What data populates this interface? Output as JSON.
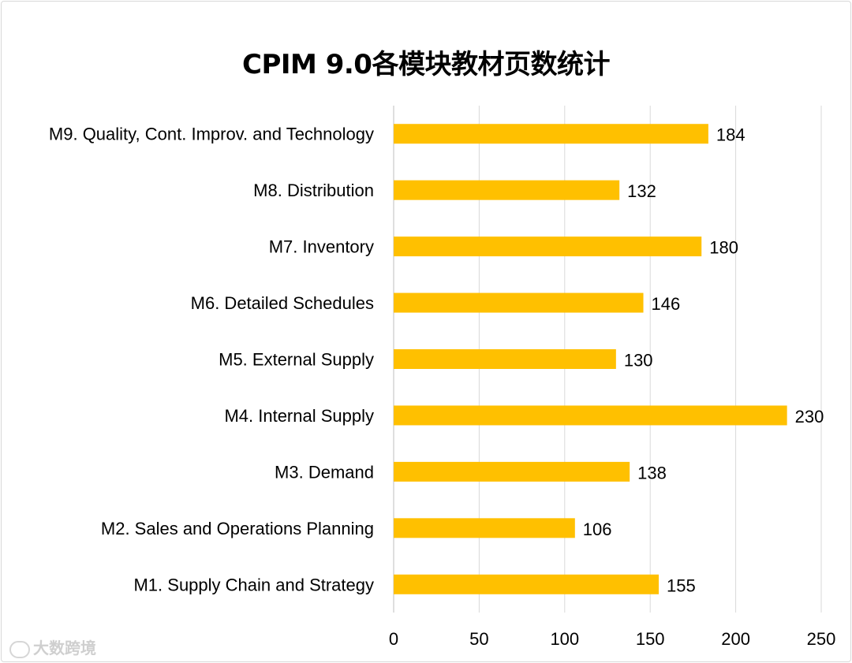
{
  "chart_data": {
    "type": "bar",
    "orientation": "horizontal",
    "title": "CPIM 9.0各模块教材页数统计",
    "categories": [
      "M1. Supply Chain and Strategy",
      "M2. Sales and Operations Planning",
      "M3. Demand",
      "M4. Internal Supply",
      "M5. External Supply",
      "M6. Detailed Schedules",
      "M7. Inventory",
      "M8. Distribution",
      "M9. Quality, Cont. Improv. and Technology"
    ],
    "values": [
      155,
      106,
      138,
      230,
      130,
      146,
      180,
      132,
      184
    ],
    "xlim": [
      0,
      250
    ],
    "xticks": [
      0,
      50,
      100,
      150,
      200,
      250
    ],
    "xlabel": "",
    "ylabel": "",
    "grid": "vertical",
    "legend": "none",
    "bar_color": "#FFC000",
    "data_labels": true
  },
  "watermark": {
    "text": "大数跨境"
  }
}
